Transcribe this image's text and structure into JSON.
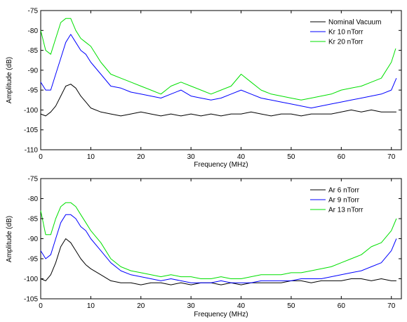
{
  "chart_data": [
    {
      "type": "line",
      "xlabel": "Frequency (MHz)",
      "ylabel": "Amplitude (dB)",
      "xlim": [
        0,
        72
      ],
      "ylim": [
        -110,
        -75
      ],
      "xticks": [
        0,
        10,
        20,
        30,
        40,
        50,
        60,
        70
      ],
      "yticks": [
        -110,
        -105,
        -100,
        -95,
        -90,
        -85,
        -80,
        -75
      ],
      "legend_position": "top-right",
      "grid": false,
      "series": [
        {
          "name": "Nominal Vacuum",
          "color": "#000000",
          "x": [
            0,
            1,
            2,
            3,
            4,
            5,
            6,
            7,
            8,
            9,
            10,
            12,
            14,
            16,
            18,
            20,
            22,
            24,
            26,
            28,
            30,
            32,
            34,
            36,
            38,
            40,
            42,
            44,
            46,
            48,
            50,
            52,
            54,
            56,
            58,
            60,
            62,
            64,
            66,
            68,
            70,
            71
          ],
          "y": [
            -101,
            -101.5,
            -100.5,
            -99,
            -96.5,
            -94,
            -93.5,
            -94.5,
            -96.5,
            -98,
            -99.5,
            -100.5,
            -101,
            -101.5,
            -101,
            -100.5,
            -101,
            -101.5,
            -101,
            -101.5,
            -101,
            -101.5,
            -101,
            -101.5,
            -101,
            -101,
            -100.5,
            -101,
            -101.5,
            -101,
            -101,
            -101.5,
            -101,
            -101,
            -101,
            -100.5,
            -100,
            -100.5,
            -100,
            -100.5,
            -100.5,
            -100.5
          ]
        },
        {
          "name": "Kr 10 nTorr",
          "color": "#0000ff",
          "x": [
            0,
            1,
            2,
            3,
            4,
            5,
            6,
            7,
            8,
            9,
            10,
            12,
            14,
            16,
            18,
            20,
            22,
            24,
            26,
            28,
            30,
            32,
            34,
            36,
            38,
            40,
            42,
            44,
            46,
            48,
            50,
            52,
            54,
            56,
            58,
            60,
            62,
            64,
            66,
            68,
            70,
            71
          ],
          "y": [
            -93,
            -95,
            -95,
            -91,
            -87,
            -83,
            -81,
            -83,
            -85,
            -86,
            -88,
            -91,
            -94,
            -94.5,
            -95.5,
            -96,
            -96.5,
            -97,
            -96,
            -95,
            -96.5,
            -97,
            -97.5,
            -97,
            -96,
            -95,
            -96,
            -97,
            -97.5,
            -98,
            -98.5,
            -99,
            -99.5,
            -99,
            -98.5,
            -98,
            -97.5,
            -97,
            -96.5,
            -96,
            -95,
            -92
          ]
        },
        {
          "name": "Kr 20 nTorr",
          "color": "#00e000",
          "x": [
            0,
            1,
            2,
            3,
            4,
            5,
            6,
            7,
            8,
            9,
            10,
            12,
            14,
            16,
            18,
            20,
            22,
            24,
            26,
            28,
            30,
            32,
            34,
            36,
            38,
            40,
            42,
            44,
            46,
            48,
            50,
            52,
            54,
            56,
            58,
            60,
            62,
            64,
            66,
            68,
            70,
            71
          ],
          "y": [
            -80,
            -85,
            -86,
            -82,
            -78,
            -77,
            -77,
            -80,
            -82,
            -83,
            -84,
            -88,
            -91,
            -92,
            -93,
            -94,
            -95,
            -96,
            -94,
            -93,
            -94,
            -95,
            -96,
            -95,
            -94,
            -91,
            -93,
            -95,
            -96,
            -96.5,
            -97,
            -97.5,
            -97,
            -96.5,
            -96,
            -95,
            -94.5,
            -94,
            -93,
            -92,
            -88,
            -84
          ]
        }
      ]
    },
    {
      "type": "line",
      "xlabel": "Frequency (MHz)",
      "ylabel": "Amplitude (dB)",
      "xlim": [
        0,
        72
      ],
      "ylim": [
        -105,
        -75
      ],
      "xticks": [
        0,
        10,
        20,
        30,
        40,
        50,
        60,
        70
      ],
      "yticks": [
        -105,
        -100,
        -95,
        -90,
        -85,
        -80,
        -75
      ],
      "legend_position": "top-right",
      "grid": false,
      "series": [
        {
          "name": "Ar 6 nTorr",
          "color": "#000000",
          "x": [
            0,
            1,
            2,
            3,
            4,
            5,
            6,
            7,
            8,
            9,
            10,
            12,
            14,
            16,
            18,
            20,
            22,
            24,
            26,
            28,
            30,
            32,
            34,
            36,
            38,
            40,
            42,
            44,
            46,
            48,
            50,
            52,
            54,
            56,
            58,
            60,
            62,
            64,
            66,
            68,
            70,
            71
          ],
          "y": [
            -100,
            -100.5,
            -99,
            -96,
            -92,
            -90,
            -91,
            -93,
            -95,
            -96.5,
            -97.5,
            -99,
            -100.5,
            -101,
            -101,
            -101.5,
            -101,
            -101,
            -101.5,
            -101,
            -101.5,
            -101,
            -101,
            -101.5,
            -101,
            -101.5,
            -101,
            -101,
            -101,
            -101,
            -100.5,
            -100.5,
            -101,
            -100.5,
            -100.5,
            -100.5,
            -100,
            -100,
            -100.5,
            -100,
            -100.5,
            -100.5
          ]
        },
        {
          "name": "Ar 9 nTorr",
          "color": "#0000ff",
          "x": [
            0,
            1,
            2,
            3,
            4,
            5,
            6,
            7,
            8,
            9,
            10,
            12,
            14,
            16,
            18,
            20,
            22,
            24,
            26,
            28,
            30,
            32,
            34,
            36,
            38,
            40,
            42,
            44,
            46,
            48,
            50,
            52,
            54,
            56,
            58,
            60,
            62,
            64,
            66,
            68,
            70,
            71
          ],
          "y": [
            -93,
            -95,
            -94,
            -90,
            -86,
            -84,
            -84,
            -85,
            -87,
            -88,
            -90,
            -93,
            -96,
            -98,
            -99,
            -99.5,
            -100,
            -100.5,
            -100,
            -100.5,
            -101,
            -101,
            -101,
            -100.5,
            -101,
            -101,
            -101,
            -100.5,
            -100.5,
            -100.5,
            -100.5,
            -100,
            -100,
            -100,
            -99.5,
            -99,
            -98.5,
            -98,
            -97,
            -96,
            -93,
            -90
          ]
        },
        {
          "name": "Ar 13 nTorr",
          "color": "#00e000",
          "x": [
            0,
            1,
            2,
            3,
            4,
            5,
            6,
            7,
            8,
            9,
            10,
            12,
            14,
            16,
            18,
            20,
            22,
            24,
            26,
            28,
            30,
            32,
            34,
            36,
            38,
            40,
            42,
            44,
            46,
            48,
            50,
            52,
            54,
            56,
            58,
            60,
            62,
            64,
            66,
            68,
            70,
            71
          ],
          "y": [
            -83,
            -89,
            -89,
            -85,
            -82,
            -81,
            -81,
            -82,
            -84,
            -86,
            -88,
            -91,
            -95,
            -97,
            -98,
            -98.5,
            -99,
            -99.5,
            -99,
            -99.5,
            -99.5,
            -100,
            -100,
            -99.5,
            -100,
            -100,
            -99.5,
            -99,
            -99,
            -99,
            -98.5,
            -98.5,
            -98,
            -97.5,
            -97,
            -96,
            -95,
            -94,
            -92,
            -91,
            -88,
            -85
          ]
        }
      ]
    }
  ]
}
